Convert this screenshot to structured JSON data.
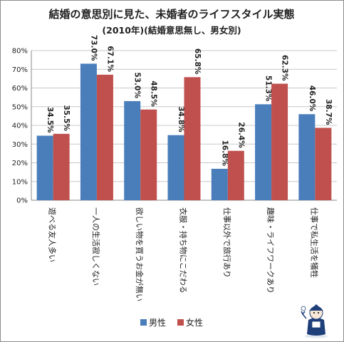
{
  "chart_data": {
    "type": "bar",
    "title": "結婚の意思別に見た、未婚者のライフスタイル実態",
    "subtitle": "(2010年)(結婚意思無し、男女別)",
    "categories": [
      "遊べる友人多い",
      "一人の生活寂しくない",
      "欲しい物を買うお金が無い",
      "衣服・持ち物にこだわる",
      "仕事以外で旅行あり",
      "趣味・ライフワークあり",
      "仕事で私生活を犠牲"
    ],
    "series": [
      {
        "name": "男性",
        "color": "#4a7ebb",
        "values": [
          34.5,
          73.0,
          53.0,
          34.8,
          16.8,
          51.3,
          46.0
        ]
      },
      {
        "name": "女性",
        "color": "#c0504d",
        "values": [
          35.5,
          67.1,
          48.5,
          65.8,
          26.4,
          62.3,
          38.7
        ]
      }
    ],
    "data_labels": [
      [
        "34.5%",
        "73.0%",
        "53.0%",
        "34.8%",
        "16.8%",
        "51.3%",
        "46.0%"
      ],
      [
        "35.5%",
        "67.1%",
        "48.5%",
        "65.8%",
        "26.4%",
        "62.3%",
        "38.7%"
      ]
    ],
    "y_ticks": [
      "0%",
      "10%",
      "20%",
      "30%",
      "40%",
      "50%",
      "60%",
      "70%",
      "80%"
    ],
    "ylim": [
      0,
      80
    ],
    "grid": true,
    "legend_position": "bottom"
  }
}
